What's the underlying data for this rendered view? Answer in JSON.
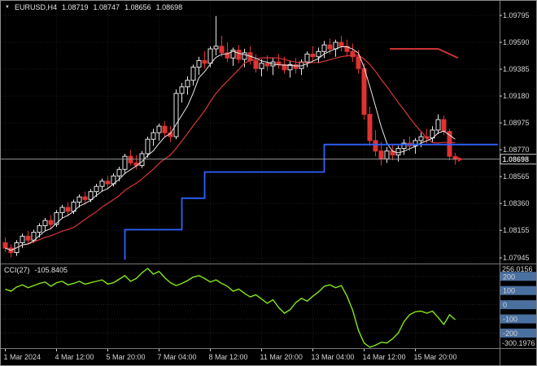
{
  "header": {
    "symbol": "EURUSD,H4",
    "open": "1.08719",
    "high": "1.08747",
    "low": "1.08656",
    "close": "1.08698"
  },
  "indicator_label": {
    "name": "CCI(27)",
    "value": "-105.8405"
  },
  "colors": {
    "background": "#000000",
    "up_candle": "#e6e6e6",
    "down_candle": "#e03232",
    "ma_fast": "#e8e8e8",
    "ma_slow": "#d93636",
    "step_blue": "#2f62ff",
    "step_red": "#d93636",
    "cci_line": "#84e818",
    "axis_text": "#d4d4d4",
    "level_box": "#4a70a0",
    "grid": "#1b1b1b",
    "separator": "#777777",
    "price_line": "#a8a8a8"
  },
  "chart_data": [
    {
      "type": "candlestick",
      "symbol": "EURUSD",
      "timeframe": "H4",
      "current_price": 1.08698,
      "current_price_label": "1.08698",
      "y_axis_ticks": [
        "1.09795",
        "1.09590",
        "1.09385",
        "1.09180",
        "1.08975",
        "1.08770",
        "1.08565",
        "1.08360",
        "1.08155",
        "1.07945"
      ],
      "x_tick_indices": [
        0,
        9,
        18,
        27,
        36,
        45,
        54,
        63,
        72
      ],
      "x_tick_labels": [
        "1 Mar 2024",
        "4 Mar 12:00",
        "5 Mar 20:00",
        "7 Mar 04:00",
        "8 Mar 12:00",
        "11 Mar 20:00",
        "13 Mar 04:00",
        "14 Mar 12:00",
        "15 Mar 20:00"
      ],
      "ohlc": [
        [
          1.0806,
          1.081,
          1.0799,
          1.0802
        ],
        [
          1.0802,
          1.0805,
          1.0795,
          1.07985
        ],
        [
          1.07985,
          1.0808,
          1.0796,
          1.0806
        ],
        [
          1.0806,
          1.0813,
          1.0802,
          1.0811
        ],
        [
          1.0811,
          1.0815,
          1.0805,
          1.0808
        ],
        [
          1.0808,
          1.0816,
          1.0806,
          1.0814
        ],
        [
          1.0814,
          1.0821,
          1.081,
          1.0819
        ],
        [
          1.0819,
          1.0825,
          1.0815,
          1.0823
        ],
        [
          1.0823,
          1.0827,
          1.0816,
          1.082
        ],
        [
          1.082,
          1.0831,
          1.0818,
          1.0829
        ],
        [
          1.0829,
          1.0835,
          1.0825,
          1.0833
        ],
        [
          1.0833,
          1.0837,
          1.0826,
          1.083
        ],
        [
          1.083,
          1.0839,
          1.0828,
          1.0837
        ],
        [
          1.0837,
          1.0843,
          1.0833,
          1.0841
        ],
        [
          1.0841,
          1.0845,
          1.0835,
          1.0839
        ],
        [
          1.0839,
          1.0847,
          1.0837,
          1.0845
        ],
        [
          1.0845,
          1.0851,
          1.0841,
          1.0849
        ],
        [
          1.0849,
          1.0855,
          1.0845,
          1.0853
        ],
        [
          1.0853,
          1.0857,
          1.0847,
          1.0851
        ],
        [
          1.0851,
          1.0859,
          1.0849,
          1.0857
        ],
        [
          1.0857,
          1.0864,
          1.0853,
          1.0862
        ],
        [
          1.0862,
          1.0874,
          1.0859,
          1.0872
        ],
        [
          1.0872,
          1.0877,
          1.0865,
          1.0867
        ],
        [
          1.0867,
          1.0873,
          1.0862,
          1.0865
        ],
        [
          1.0865,
          1.0876,
          1.0863,
          1.0874
        ],
        [
          1.0874,
          1.0887,
          1.0871,
          1.0885
        ],
        [
          1.0885,
          1.0893,
          1.088,
          1.089
        ],
        [
          1.089,
          1.0897,
          1.0884,
          1.0895
        ],
        [
          1.0895,
          1.0899,
          1.0887,
          1.089
        ],
        [
          1.089,
          1.0895,
          1.0883,
          1.0887
        ],
        [
          1.0887,
          1.0923,
          1.0885,
          1.092
        ],
        [
          1.092,
          1.0928,
          1.0913,
          1.0925
        ],
        [
          1.0925,
          1.0933,
          1.0919,
          1.093
        ],
        [
          1.093,
          1.0942,
          1.0926,
          1.094
        ],
        [
          1.094,
          1.0948,
          1.0934,
          1.0945
        ],
        [
          1.0945,
          1.0952,
          1.0939,
          1.0943
        ],
        [
          1.0943,
          1.0956,
          1.094,
          1.0954
        ],
        [
          1.0954,
          1.0979,
          1.0949,
          1.0956
        ],
        [
          1.0956,
          1.0964,
          1.0948,
          1.0951
        ],
        [
          1.0951,
          1.0959,
          1.0944,
          1.0947
        ],
        [
          1.0947,
          1.0955,
          1.0941,
          1.0953
        ],
        [
          1.0953,
          1.0957,
          1.0943,
          1.0946
        ],
        [
          1.0946,
          1.0954,
          1.094,
          1.0951
        ],
        [
          1.0951,
          1.0956,
          1.0942,
          1.0945
        ],
        [
          1.0945,
          1.095,
          1.0936,
          1.0939
        ],
        [
          1.0939,
          1.0946,
          1.0933,
          1.0943
        ],
        [
          1.0943,
          1.0949,
          1.0937,
          1.0941
        ],
        [
          1.0941,
          1.0947,
          1.0934,
          1.0944
        ],
        [
          1.0944,
          1.095,
          1.0939,
          1.0942
        ],
        [
          1.0942,
          1.0948,
          1.0935,
          1.0938
        ],
        [
          1.0938,
          1.0945,
          1.0932,
          1.0942
        ],
        [
          1.0942,
          1.0947,
          1.0935,
          1.0939
        ],
        [
          1.0939,
          1.0946,
          1.0934,
          1.0944
        ],
        [
          1.0944,
          1.0952,
          1.094,
          1.095
        ],
        [
          1.095,
          1.0956,
          1.0944,
          1.0948
        ],
        [
          1.0948,
          1.0955,
          1.0943,
          1.0952
        ],
        [
          1.0952,
          1.096,
          1.0947,
          1.0957
        ],
        [
          1.0957,
          1.0962,
          1.095,
          1.0954
        ],
        [
          1.0954,
          1.0961,
          1.0948,
          1.0959
        ],
        [
          1.0959,
          1.0964,
          1.0952,
          1.0956
        ],
        [
          1.0956,
          1.0961,
          1.0948,
          1.0952
        ],
        [
          1.0952,
          1.0958,
          1.0944,
          1.0948
        ],
        [
          1.0948,
          1.0953,
          1.0935,
          1.0939
        ],
        [
          1.0939,
          1.0943,
          1.09,
          1.0904
        ],
        [
          1.0904,
          1.091,
          1.088,
          1.0884
        ],
        [
          1.0884,
          1.0892,
          1.0872,
          1.0876
        ],
        [
          1.0876,
          1.0883,
          1.0865,
          1.087
        ],
        [
          1.087,
          1.0879,
          1.0867,
          1.0876
        ],
        [
          1.0876,
          1.0881,
          1.0869,
          1.0873
        ],
        [
          1.0873,
          1.088,
          1.0868,
          1.0878
        ],
        [
          1.0878,
          1.0885,
          1.0873,
          1.0882
        ],
        [
          1.0882,
          1.0887,
          1.0876,
          1.088
        ],
        [
          1.088,
          1.0886,
          1.0874,
          1.0884
        ],
        [
          1.0884,
          1.089,
          1.0879,
          1.0887
        ],
        [
          1.0887,
          1.0893,
          1.0882,
          1.0886
        ],
        [
          1.0886,
          1.0895,
          1.0883,
          1.0892
        ],
        [
          1.0892,
          1.0904,
          1.0889,
          1.09
        ],
        [
          1.09,
          1.0903,
          1.0888,
          1.0891
        ],
        [
          1.0891,
          1.0893,
          1.0869,
          1.0872
        ],
        [
          1.08719,
          1.08747,
          1.08656,
          1.08698
        ]
      ],
      "overlays": {
        "ma_fast": {
          "period": 5
        },
        "ma_slow": {
          "period": 13
        },
        "support_step_blue": {
          "points": [
            [
              21,
              1.0793
            ],
            [
              21,
              1.0816
            ],
            [
              31,
              1.0816
            ],
            [
              31,
              1.084
            ],
            [
              35,
              1.084
            ],
            [
              35,
              1.086
            ],
            [
              56,
              1.086
            ],
            [
              56,
              1.0881
            ],
            [
              86.5,
              1.0881
            ]
          ]
        },
        "resistance_step_red": {
          "points": [
            [
              67.5,
              1.0954
            ],
            [
              76,
              1.0954
            ],
            [
              79.5,
              1.0947
            ]
          ]
        }
      }
    },
    {
      "type": "line",
      "name": "CCI(27)",
      "current_value": -105.8405,
      "value_range": [
        -300.1976,
        256.0156
      ],
      "y_axis": {
        "max_label": "256.0156",
        "min_label": "-300.1976",
        "levels": [
          "200",
          "100",
          "0",
          "-100",
          "-200"
        ]
      },
      "values": [
        110,
        95,
        125,
        140,
        120,
        135,
        150,
        160,
        130,
        155,
        165,
        140,
        150,
        165,
        145,
        155,
        165,
        175,
        145,
        155,
        180,
        205,
        165,
        185,
        225,
        256.0156,
        215,
        235,
        190,
        155,
        135,
        150,
        170,
        195,
        205,
        185,
        160,
        175,
        150,
        130,
        95,
        110,
        80,
        55,
        70,
        40,
        10,
        35,
        -20,
        -60,
        -35,
        15,
        45,
        25,
        60,
        90,
        130,
        140,
        120,
        135,
        60,
        -40,
        -180,
        -270,
        -300.1976,
        -285,
        -265,
        -270,
        -240,
        -200,
        -120,
        -70,
        -50,
        -45,
        -60,
        -45,
        -90,
        -140,
        -70,
        -105.8405
      ]
    }
  ]
}
